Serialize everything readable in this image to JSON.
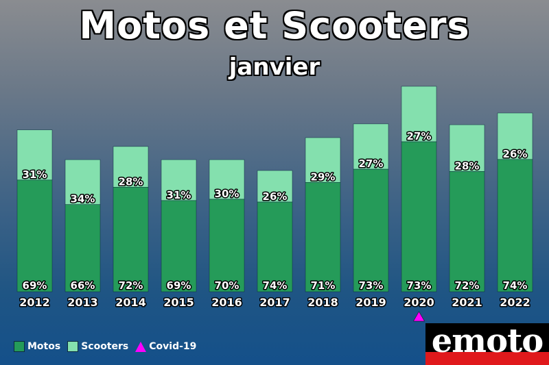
{
  "header": {
    "title": "Motos et Scooters",
    "subtitle": "janvier"
  },
  "legend": {
    "motos": "Motos",
    "scooters": "Scooters",
    "covid": "Covid-19"
  },
  "logo": {
    "text": "emoto"
  },
  "colors": {
    "motos": "#259b59",
    "scooters": "#84e0ae",
    "covid": "#ff00ff",
    "bar_outline": "#0d2a3f"
  },
  "chart_data": {
    "type": "bar",
    "stacked": true,
    "categories": [
      "2012",
      "2013",
      "2014",
      "2015",
      "2016",
      "2017",
      "2018",
      "2019",
      "2020",
      "2021",
      "2022"
    ],
    "totals_relative": [
      0.788,
      0.643,
      0.707,
      0.643,
      0.643,
      0.59,
      0.75,
      0.817,
      1.0,
      0.813,
      0.87
    ],
    "series": [
      {
        "name": "Motos",
        "labels": [
          "69%",
          "66%",
          "72%",
          "69%",
          "70%",
          "74%",
          "71%",
          "73%",
          "73%",
          "72%",
          "74%"
        ],
        "percent": [
          69,
          66,
          72,
          69,
          70,
          74,
          71,
          73,
          73,
          72,
          74
        ]
      },
      {
        "name": "Scooters",
        "labels": [
          "31%",
          "34%",
          "28%",
          "31%",
          "30%",
          "26%",
          "29%",
          "27%",
          "27%",
          "28%",
          "26%"
        ],
        "percent": [
          31,
          34,
          28,
          31,
          30,
          26,
          29,
          27,
          27,
          28,
          26
        ]
      }
    ],
    "marker": {
      "category": "2020",
      "label": "Covid-19",
      "shape": "triangle"
    },
    "legend_position": "bottom-left",
    "grid": false
  }
}
